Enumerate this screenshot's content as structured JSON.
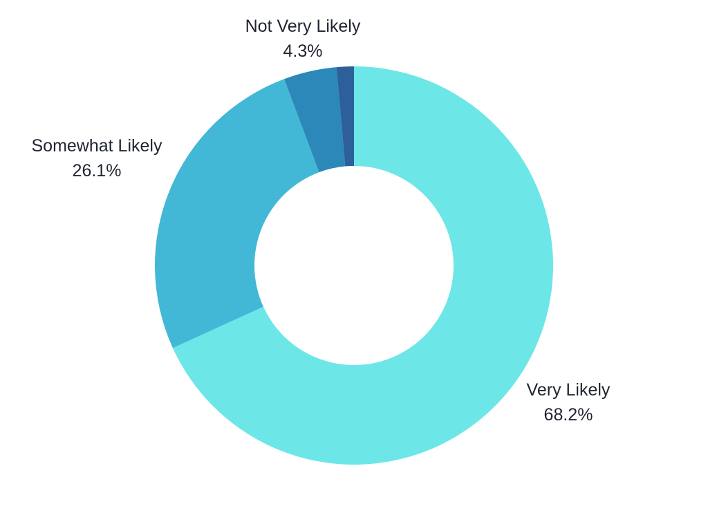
{
  "chart_data": {
    "type": "pie",
    "donut": true,
    "title": "",
    "slices": [
      {
        "label": "Very Likely",
        "value": 68.2,
        "display": "68.2%",
        "color": "#6de6e8"
      },
      {
        "label": "Somewhat Likely",
        "value": 26.1,
        "display": "26.1%",
        "color": "#42b8d6"
      },
      {
        "label": "Not Very Likely",
        "value": 4.3,
        "display": "4.3%",
        "color": "#2b88b8"
      },
      {
        "label": "",
        "value": 1.4,
        "display": "",
        "color": "#2d5f9a"
      }
    ]
  }
}
